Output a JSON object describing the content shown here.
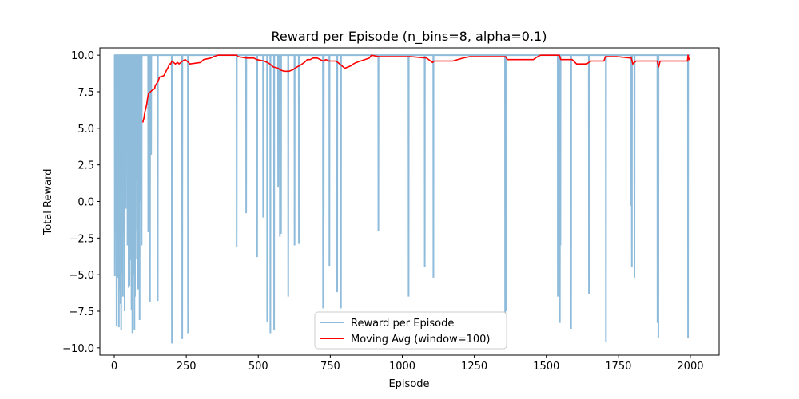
{
  "chart_data": {
    "type": "line",
    "title": "Reward per Episode (n_bins=8, alpha=0.1)",
    "xlabel": "Episode",
    "ylabel": "Total Reward",
    "xlim": [
      -50,
      2100
    ],
    "ylim": [
      -10.5,
      10.5
    ],
    "xticks": [
      0,
      250,
      500,
      750,
      1000,
      1250,
      1500,
      1750,
      2000
    ],
    "yticks": [
      -10.0,
      -7.5,
      -5.0,
      -2.5,
      0.0,
      2.5,
      5.0,
      7.5,
      10.0
    ],
    "xtick_labels": [
      "0",
      "250",
      "500",
      "750",
      "1000",
      "1250",
      "1500",
      "1750",
      "2000"
    ],
    "ytick_labels": [
      "−10.0",
      "−7.5",
      "−5.0",
      "−2.5",
      "0.0",
      "2.5",
      "5.0",
      "7.5",
      "10.0"
    ],
    "legend_position": "bottom-center",
    "series": [
      {
        "name": "Reward per Episode",
        "color": "#90bcdc",
        "baseline": 10.0,
        "episodes": 2000,
        "dips": [
          [
            2,
            -5.1
          ],
          [
            4,
            -2.0
          ],
          [
            6,
            0.5
          ],
          [
            8,
            -8.5
          ],
          [
            10,
            -3.0
          ],
          [
            12,
            -5.2
          ],
          [
            14,
            -1.5
          ],
          [
            16,
            -8.6
          ],
          [
            18,
            -4.2
          ],
          [
            20,
            -6.0
          ],
          [
            22,
            -7.0
          ],
          [
            24,
            -8.8
          ],
          [
            26,
            -4.9
          ],
          [
            28,
            -1.0
          ],
          [
            30,
            -6.5
          ],
          [
            33,
            -2.2
          ],
          [
            36,
            -7.5
          ],
          [
            40,
            -0.5
          ],
          [
            43,
            3.5
          ],
          [
            46,
            -3.0
          ],
          [
            50,
            -5.9
          ],
          [
            53,
            -5.8
          ],
          [
            56,
            -4.0
          ],
          [
            58,
            1.0
          ],
          [
            60,
            -7.4
          ],
          [
            63,
            -9.0
          ],
          [
            66,
            -5.0
          ],
          [
            68,
            2.0
          ],
          [
            70,
            -8.8
          ],
          [
            72,
            -6.5
          ],
          [
            74,
            -3.9
          ],
          [
            77,
            1.5
          ],
          [
            80,
            -2.0
          ],
          [
            83,
            -6.0
          ],
          [
            85,
            -3.5
          ],
          [
            88,
            -8.1
          ],
          [
            91,
            0.0
          ],
          [
            93,
            4.0
          ],
          [
            95,
            -3.0
          ],
          [
            118,
            -2.1
          ],
          [
            124,
            -6.9
          ],
          [
            128,
            3.2
          ],
          [
            151,
            -6.8
          ],
          [
            200,
            -9.7
          ],
          [
            236,
            -9.4
          ],
          [
            256,
            -9.0
          ],
          [
            425,
            -3.1
          ],
          [
            458,
            -0.8
          ],
          [
            496,
            -3.8
          ],
          [
            517,
            -1.1
          ],
          [
            531,
            -8.2
          ],
          [
            542,
            -9.0
          ],
          [
            555,
            -8.8
          ],
          [
            569,
            1.0
          ],
          [
            575,
            -2.4
          ],
          [
            579,
            -2.2
          ],
          [
            604,
            -6.5
          ],
          [
            626,
            -3.0
          ],
          [
            641,
            -2.9
          ],
          [
            725,
            -7.3
          ],
          [
            727,
            -1.4
          ],
          [
            747,
            -4.4
          ],
          [
            774,
            -6.2
          ],
          [
            787,
            -7.3
          ],
          [
            917,
            -2.0
          ],
          [
            1022,
            -6.5
          ],
          [
            1078,
            -4.5
          ],
          [
            1108,
            -5.2
          ],
          [
            1357,
            -7.7
          ],
          [
            1361,
            -7.5
          ],
          [
            1540,
            -6.5
          ],
          [
            1547,
            -8.3
          ],
          [
            1549,
            -3.0
          ],
          [
            1586,
            -8.7
          ],
          [
            1648,
            -6.3
          ],
          [
            1707,
            -9.6
          ],
          [
            1795,
            -0.3
          ],
          [
            1797,
            -4.5
          ],
          [
            1806,
            -5.2
          ],
          [
            1886,
            -8.3
          ],
          [
            1889,
            -9.3
          ],
          [
            1992,
            -9.3
          ]
        ]
      },
      {
        "name": "Moving Avg (window=100)",
        "color": "#ff0000",
        "start_episode": 99,
        "points": [
          [
            99,
            5.4
          ],
          [
            103,
            5.7
          ],
          [
            106,
            6.1
          ],
          [
            110,
            6.4
          ],
          [
            113,
            6.7
          ],
          [
            116,
            7.1
          ],
          [
            119,
            7.4
          ],
          [
            126,
            7.5
          ],
          [
            131,
            7.6
          ],
          [
            140,
            7.7
          ],
          [
            142,
            7.9
          ],
          [
            145,
            8.0
          ],
          [
            152,
            8.2
          ],
          [
            157,
            8.5
          ],
          [
            172,
            8.6
          ],
          [
            185,
            9.1
          ],
          [
            188,
            9.2
          ],
          [
            191,
            9.4
          ],
          [
            196,
            9.4
          ],
          [
            200,
            9.6
          ],
          [
            206,
            9.5
          ],
          [
            212,
            9.4
          ],
          [
            220,
            9.5
          ],
          [
            225,
            9.4
          ],
          [
            237,
            9.6
          ],
          [
            246,
            9.7
          ],
          [
            258,
            9.5
          ],
          [
            262,
            9.4
          ],
          [
            300,
            9.5
          ],
          [
            310,
            9.7
          ],
          [
            335,
            9.8
          ],
          [
            345,
            9.9
          ],
          [
            360,
            10.0
          ],
          [
            425,
            10.0
          ],
          [
            430,
            9.9
          ],
          [
            460,
            9.8
          ],
          [
            485,
            9.8
          ],
          [
            495,
            9.7
          ],
          [
            520,
            9.6
          ],
          [
            532,
            9.5
          ],
          [
            540,
            9.4
          ],
          [
            552,
            9.2
          ],
          [
            570,
            9.1
          ],
          [
            575,
            9.0
          ],
          [
            590,
            8.9
          ],
          [
            600,
            8.9
          ],
          [
            606,
            8.9
          ],
          [
            620,
            9.0
          ],
          [
            627,
            9.1
          ],
          [
            635,
            9.2
          ],
          [
            645,
            9.3
          ],
          [
            660,
            9.5
          ],
          [
            670,
            9.7
          ],
          [
            680,
            9.7
          ],
          [
            690,
            9.8
          ],
          [
            700,
            9.8
          ],
          [
            705,
            9.8
          ],
          [
            725,
            9.6
          ],
          [
            735,
            9.7
          ],
          [
            746,
            9.6
          ],
          [
            770,
            9.6
          ],
          [
            795,
            9.2
          ],
          [
            800,
            9.1
          ],
          [
            825,
            9.3
          ],
          [
            830,
            9.4
          ],
          [
            840,
            9.5
          ],
          [
            855,
            9.6
          ],
          [
            885,
            9.8
          ],
          [
            893,
            10.0
          ],
          [
            918,
            9.9
          ],
          [
            1010,
            9.9
          ],
          [
            1020,
            9.9
          ],
          [
            1030,
            9.9
          ],
          [
            1085,
            9.8
          ],
          [
            1105,
            9.5
          ],
          [
            1110,
            9.6
          ],
          [
            1175,
            9.6
          ],
          [
            1210,
            9.8
          ],
          [
            1235,
            9.9
          ],
          [
            1358,
            9.9
          ],
          [
            1365,
            9.7
          ],
          [
            1455,
            9.7
          ],
          [
            1470,
            9.9
          ],
          [
            1480,
            10.0
          ],
          [
            1545,
            10.0
          ],
          [
            1550,
            9.7
          ],
          [
            1590,
            9.7
          ],
          [
            1605,
            9.4
          ],
          [
            1640,
            9.4
          ],
          [
            1655,
            9.6
          ],
          [
            1700,
            9.6
          ],
          [
            1705,
            9.9
          ],
          [
            1736,
            9.9
          ],
          [
            1745,
            9.9
          ],
          [
            1795,
            9.8
          ],
          [
            1800,
            9.4
          ],
          [
            1811,
            9.6
          ],
          [
            1885,
            9.6
          ],
          [
            1890,
            9.2
          ],
          [
            1895,
            9.6
          ],
          [
            1990,
            9.6
          ],
          [
            1992,
            10.0
          ],
          [
            1995,
            9.7
          ],
          [
            1998,
            9.8
          ]
        ]
      }
    ]
  }
}
